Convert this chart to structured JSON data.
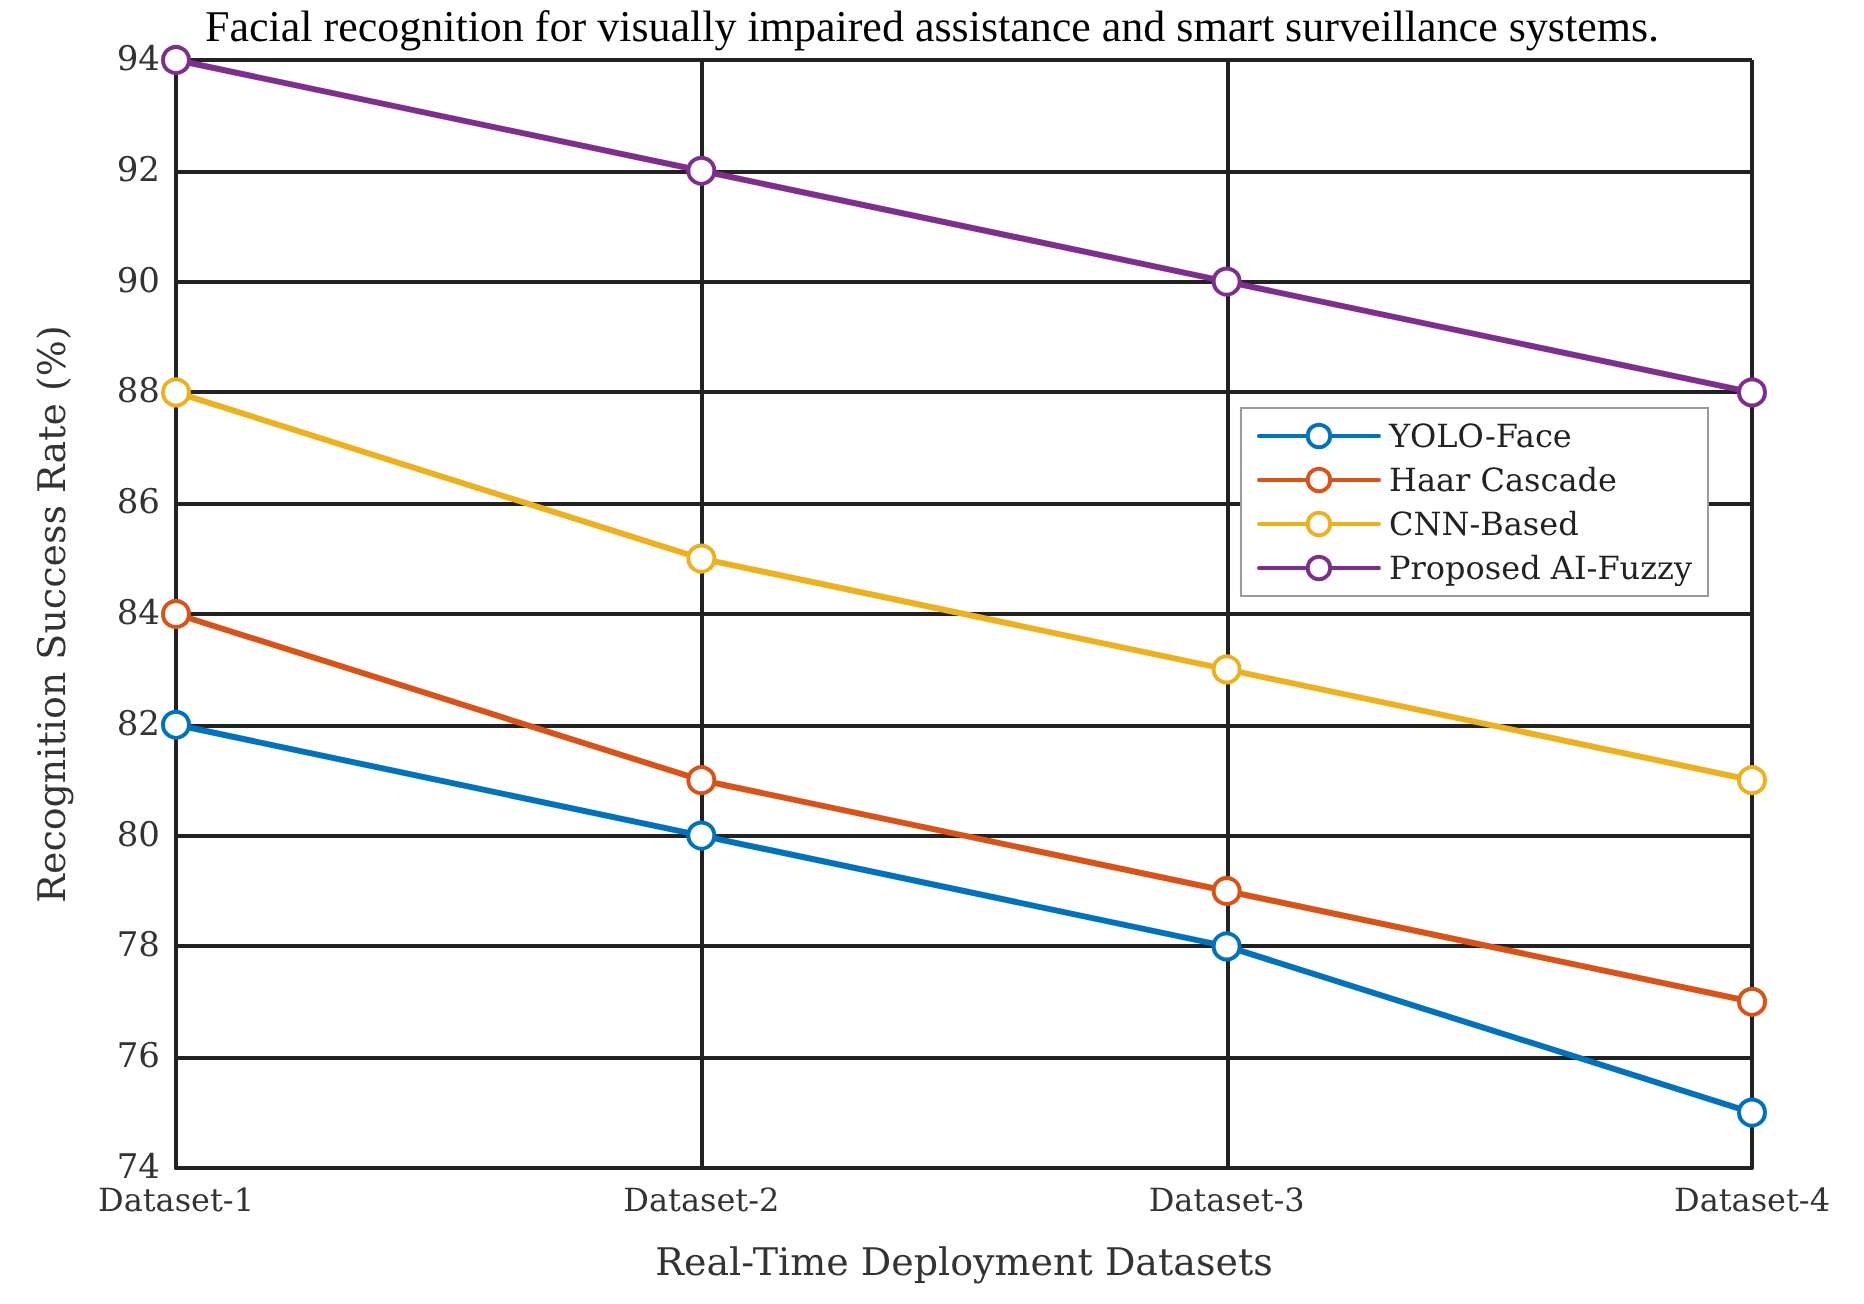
{
  "chart_data": {
    "type": "line",
    "annotations": [
      "Facial recognition for visually impaired assistance and smart surveillance systems."
    ],
    "xlabel": "Real-Time Deployment Datasets",
    "ylabel": "Recognition Success Rate (%)",
    "categories": [
      "Dataset-1",
      "Dataset-2",
      "Dataset-3",
      "Dataset-4"
    ],
    "series": [
      {
        "name": "YOLO-Face",
        "color": "#0072bd",
        "values": [
          82,
          80,
          78,
          75
        ]
      },
      {
        "name": "Haar Cascade",
        "color": "#d95319",
        "values": [
          84,
          81,
          79,
          77
        ]
      },
      {
        "name": "CNN-Based",
        "color": "#edb120",
        "values": [
          88,
          85,
          83,
          81
        ]
      },
      {
        "name": "Proposed AI-Fuzzy",
        "color": "#7e2f8e",
        "values": [
          94,
          92,
          90,
          88
        ]
      }
    ],
    "ylim": [
      74,
      94
    ],
    "yticks": [
      74,
      76,
      78,
      80,
      82,
      84,
      86,
      88,
      90,
      92,
      94
    ],
    "grid": true,
    "legend": "right",
    "marker": "circle",
    "line_style": "solid"
  }
}
